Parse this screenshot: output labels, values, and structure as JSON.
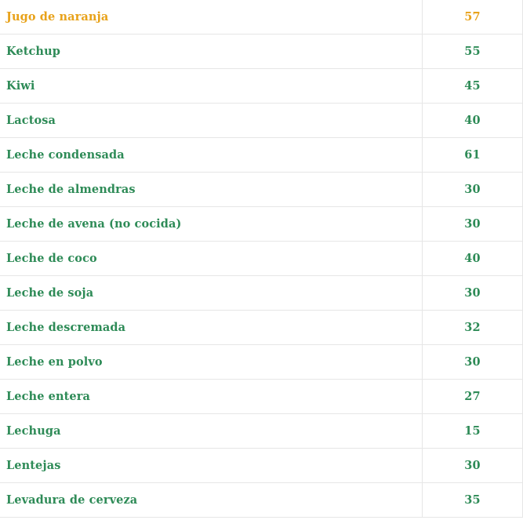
{
  "colors": {
    "default_text": "#2e8b57",
    "highlight_text": "#e8a21a",
    "border": "#e6e6e6"
  },
  "rows": [
    {
      "name": "Jugo de naranja",
      "value": "57",
      "highlight": true
    },
    {
      "name": "Ketchup",
      "value": "55",
      "highlight": false
    },
    {
      "name": "Kiwi",
      "value": "45",
      "highlight": false
    },
    {
      "name": "Lactosa",
      "value": "40",
      "highlight": false
    },
    {
      "name": "Leche condensada",
      "value": "61",
      "highlight": false
    },
    {
      "name": "Leche de almendras",
      "value": "30",
      "highlight": false
    },
    {
      "name": "Leche de avena (no cocida)",
      "value": "30",
      "highlight": false
    },
    {
      "name": "Leche de coco",
      "value": "40",
      "highlight": false
    },
    {
      "name": "Leche de soja",
      "value": "30",
      "highlight": false
    },
    {
      "name": "Leche descremada",
      "value": "32",
      "highlight": false
    },
    {
      "name": "Leche en polvo",
      "value": "30",
      "highlight": false
    },
    {
      "name": "Leche entera",
      "value": "27",
      "highlight": false
    },
    {
      "name": "Lechuga",
      "value": "15",
      "highlight": false
    },
    {
      "name": "Lentejas",
      "value": "30",
      "highlight": false
    },
    {
      "name": "Levadura de cerveza",
      "value": "35",
      "highlight": false
    }
  ]
}
